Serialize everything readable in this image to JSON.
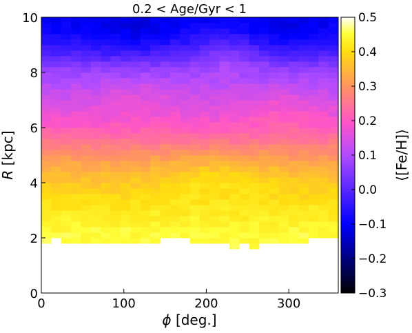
{
  "chart_data": {
    "type": "heatmap",
    "title": "0.2 < Age/Gyr < 1",
    "xlabel_symbol": "ϕ",
    "xlabel_unit": "[deg.]",
    "ylabel_symbol": "R",
    "ylabel_unit": "[kpc]",
    "xlim": [
      0,
      360
    ],
    "ylim": [
      0,
      10
    ],
    "xticks": [
      0,
      100,
      200,
      300
    ],
    "yticks": [
      0,
      2,
      4,
      6,
      8,
      10
    ],
    "x_bin_width_deg": 12,
    "y_bin_width_kpc": 0.2,
    "grid": false,
    "colorbar": {
      "label": "⟨[Fe/H]⟩",
      "range": [
        -0.3,
        0.5
      ],
      "ticks": [
        "−0.3",
        "−0.2",
        "−0.1",
        "0.0",
        "0.1",
        "0.2",
        "0.3",
        "0.4",
        "0.5"
      ],
      "tick_values": [
        -0.3,
        -0.2,
        -0.1,
        0.0,
        0.1,
        0.2,
        0.3,
        0.4,
        0.5
      ],
      "colormap": "gnuplot2",
      "colormap_stops": [
        [
          0.0,
          "#000000"
        ],
        [
          0.25,
          "#0000ff"
        ],
        [
          0.5,
          "#b04cff"
        ],
        [
          0.62,
          "#ff55c8"
        ],
        [
          0.75,
          "#ff9560"
        ],
        [
          0.875,
          "#ffdd10"
        ],
        [
          0.94,
          "#ffff3a"
        ],
        [
          1.0,
          "#ffffff"
        ]
      ]
    },
    "radial_profile": {
      "description_units": "R in kpc, mean [Fe/H] in dex",
      "points": [
        [
          2.0,
          0.45
        ],
        [
          2.4,
          0.44
        ],
        [
          3.0,
          0.42
        ],
        [
          3.6,
          0.39
        ],
        [
          4.2,
          0.36
        ],
        [
          5.0,
          0.3
        ],
        [
          5.6,
          0.24
        ],
        [
          6.2,
          0.19
        ],
        [
          6.8,
          0.15
        ],
        [
          7.4,
          0.12
        ],
        [
          7.8,
          0.09
        ],
        [
          8.2,
          0.06
        ],
        [
          8.6,
          0.0
        ],
        [
          9.2,
          -0.06
        ],
        [
          9.6,
          -0.09
        ],
        [
          10.0,
          -0.1
        ]
      ]
    },
    "inner_edge": {
      "phi": [
        0,
        36,
        72,
        108,
        144,
        180,
        216,
        252,
        288,
        324,
        360
      ],
      "r_min_kpc": [
        2.0,
        1.9,
        1.7,
        1.8,
        1.9,
        2.0,
        1.8,
        1.7,
        1.8,
        1.9,
        2.0
      ]
    },
    "azimuthal_features": [
      {
        "phi_center": 110,
        "phi_width": 55,
        "r_center": 9.4,
        "r_width": 0.9,
        "delta_feh": -0.035
      },
      {
        "phi_center": 300,
        "phi_width": 45,
        "r_center": 9.4,
        "r_width": 0.9,
        "delta_feh": -0.03
      },
      {
        "phi_center": 225,
        "phi_width": 40,
        "r_center": 8.7,
        "r_width": 0.8,
        "delta_feh": 0.05
      },
      {
        "phi_center": 215,
        "phi_width": 70,
        "r_center": 4.2,
        "r_width": 0.7,
        "delta_feh": 0.04
      },
      {
        "phi_center": 290,
        "phi_width": 40,
        "r_center": 6.6,
        "r_width": 0.8,
        "delta_feh": 0.03
      },
      {
        "phi_center": 120,
        "phi_width": 50,
        "r_center": 7.2,
        "r_width": 0.7,
        "delta_feh": 0.025
      }
    ]
  }
}
